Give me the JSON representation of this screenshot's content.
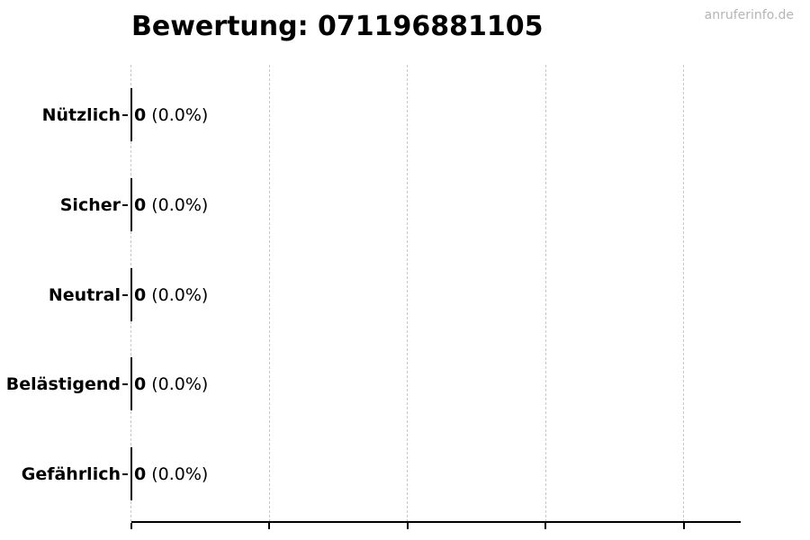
{
  "watermark": "anruferinfo.de",
  "chart_data": {
    "type": "bar",
    "orientation": "horizontal",
    "title": "Bewertung: 071196881105",
    "categories": [
      "Nützlich",
      "Sicher",
      "Neutral",
      "Belästigend",
      "Gefährlich"
    ],
    "values": [
      0,
      0,
      0,
      0,
      0
    ],
    "value_labels": [
      "0",
      "0",
      "0",
      "0",
      "0"
    ],
    "pct_labels": [
      "(0.0%)",
      "(0.0%)",
      "(0.0%)",
      "(0.0%)",
      "(0.0%)"
    ],
    "xlabel": "",
    "ylabel": "",
    "xlim": [
      0,
      4.4
    ],
    "xticks": [
      0,
      1,
      2,
      3,
      4
    ],
    "xtick_labels_visible": false,
    "grid": "vertical-dashed",
    "legend": "none",
    "colors": {
      "text": "#000000",
      "axis": "#000000",
      "gridline": "#c8c8c8",
      "watermark": "#b5b5b5",
      "background": "#ffffff"
    }
  }
}
